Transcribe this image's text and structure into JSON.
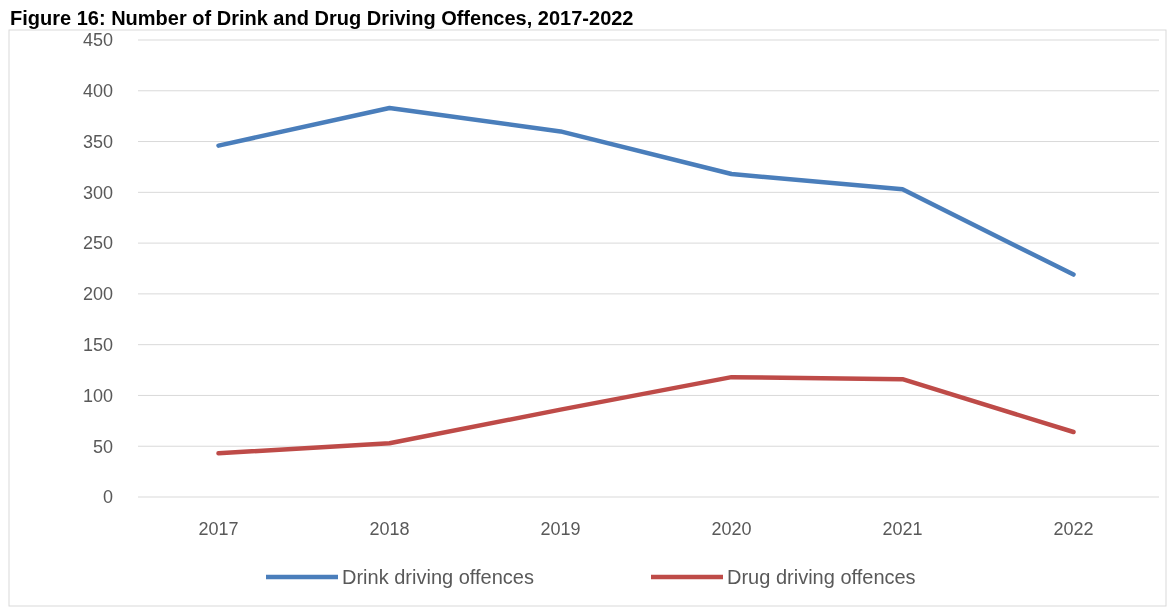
{
  "chart_data": {
    "type": "line",
    "title": "Figure 16: Number of Drink and Drug Driving Offences, 2017-2022",
    "categories": [
      "2017",
      "2018",
      "2019",
      "2020",
      "2021",
      "2022"
    ],
    "series": [
      {
        "name": "Drink driving offences",
        "color": "#4a7ebb",
        "values": [
          346,
          383,
          360,
          318,
          303,
          219
        ]
      },
      {
        "name": "Drug driving offences",
        "color": "#be4b48",
        "values": [
          43,
          53,
          86,
          118,
          116,
          64
        ]
      }
    ],
    "ylim": [
      0,
      450
    ],
    "yticks": [
      0,
      50,
      100,
      150,
      200,
      250,
      300,
      350,
      400,
      450
    ],
    "grid": "y",
    "legend": "bottom",
    "marker": "none",
    "line_style": "solid"
  }
}
